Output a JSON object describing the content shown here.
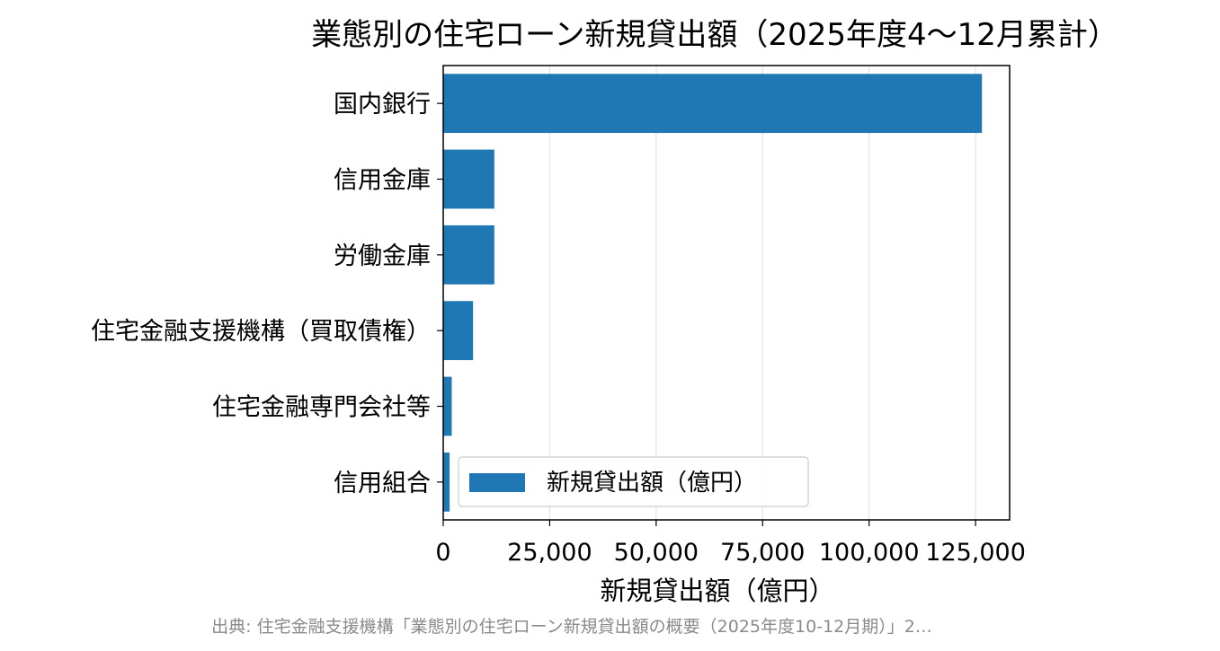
{
  "chart_data": {
    "type": "bar",
    "orientation": "horizontal",
    "title": "業態別の住宅ローン新規貸出額（2025年度4〜12月累計）",
    "xlabel": "新規貸出額（億円）",
    "ylabel": "",
    "categories": [
      "国内銀行",
      "信用金庫",
      "労働金庫",
      "住宅金融支援機構（買取債権）",
      "住宅金融専門会社等",
      "信用組合"
    ],
    "series": [
      {
        "name": "新規貸出額（億円）",
        "values": [
          126500,
          12000,
          12000,
          7000,
          2000,
          1500
        ]
      }
    ],
    "xlim": [
      0,
      133000
    ],
    "xticks": [
      {
        "value": 0,
        "label": "0"
      },
      {
        "value": 25000,
        "label": "25,000"
      },
      {
        "value": 50000,
        "label": "50,000"
      },
      {
        "value": 75000,
        "label": "75,000"
      },
      {
        "value": 100000,
        "label": "100,000"
      },
      {
        "value": 125000,
        "label": "125,000"
      }
    ],
    "grid": "vertical",
    "legend_position": "lower-left",
    "bar_color": "#1f77b4"
  },
  "source_note": "出典: 住宅金融支援機構「業態別の住宅ローン新規貸出額の概要（2025年度10-12月期）」2…"
}
